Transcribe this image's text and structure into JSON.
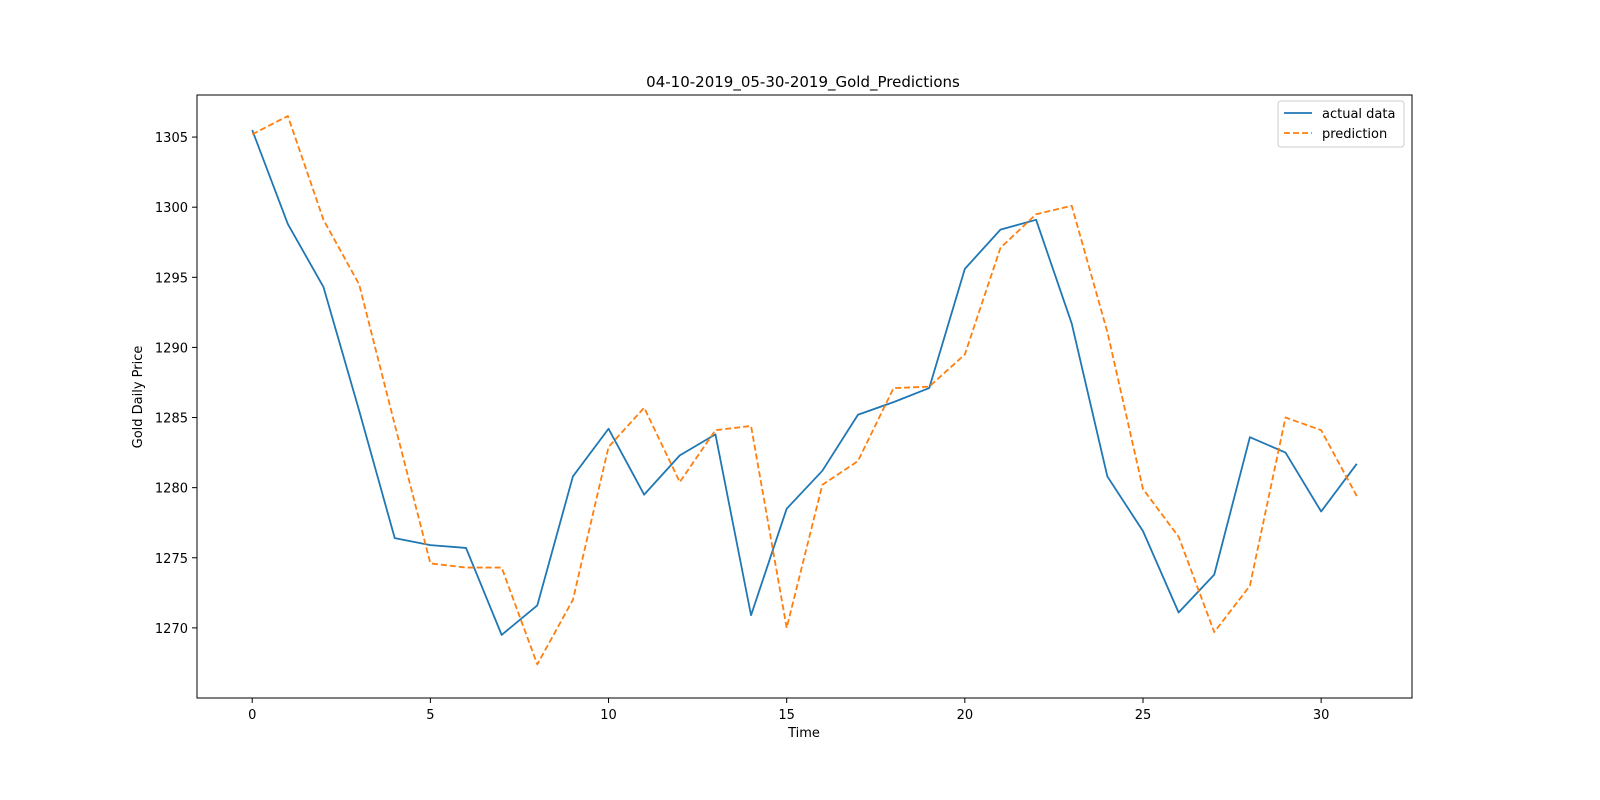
{
  "chart_data": {
    "type": "line",
    "title": "04-10-2019_05-30-2019_Gold_Predictions",
    "xlabel": "Time",
    "ylabel": "Gold Daily Price",
    "xlim": [
      -1.55,
      32.55
    ],
    "ylim": [
      1265.0,
      1308.0
    ],
    "xticks": [
      0,
      5,
      10,
      15,
      20,
      25,
      30
    ],
    "yticks": [
      1270,
      1275,
      1280,
      1285,
      1290,
      1295,
      1300,
      1305
    ],
    "grid": false,
    "legend_position": "top-right",
    "x": [
      0,
      1,
      2,
      3,
      4,
      5,
      6,
      7,
      8,
      9,
      10,
      11,
      12,
      13,
      14,
      15,
      16,
      17,
      18,
      19,
      20,
      21,
      22,
      23,
      24,
      25,
      26,
      27,
      28,
      29,
      30,
      31
    ],
    "series": [
      {
        "name": "actual data",
        "color": "#1f77b4",
        "style": "solid",
        "values": [
          1305.5,
          1298.8,
          1294.3,
          1285.5,
          1276.4,
          1275.9,
          1275.7,
          1269.5,
          1271.6,
          1280.8,
          1284.2,
          1279.5,
          1282.3,
          1283.8,
          1270.9,
          1278.5,
          1281.2,
          1285.2,
          1286.1,
          1287.1,
          1295.6,
          1298.4,
          1299.1,
          1291.7,
          1280.8,
          1276.9,
          1271.1,
          1273.8,
          1283.6,
          1282.5,
          1278.3,
          1281.7
        ]
      },
      {
        "name": "prediction",
        "color": "#ff7f0e",
        "style": "dashed",
        "values": [
          1305.2,
          1306.5,
          1299.1,
          1294.5,
          1284.5,
          1274.6,
          1274.3,
          1274.3,
          1267.4,
          1272.0,
          1282.9,
          1285.7,
          1280.4,
          1284.1,
          1284.4,
          1270.0,
          1280.2,
          1281.9,
          1287.1,
          1287.2,
          1289.5,
          1297.1,
          1299.5,
          1300.1,
          1291.1,
          1279.9,
          1276.5,
          1269.7,
          1273.0,
          1285.0,
          1284.1,
          1279.4
        ]
      }
    ]
  }
}
